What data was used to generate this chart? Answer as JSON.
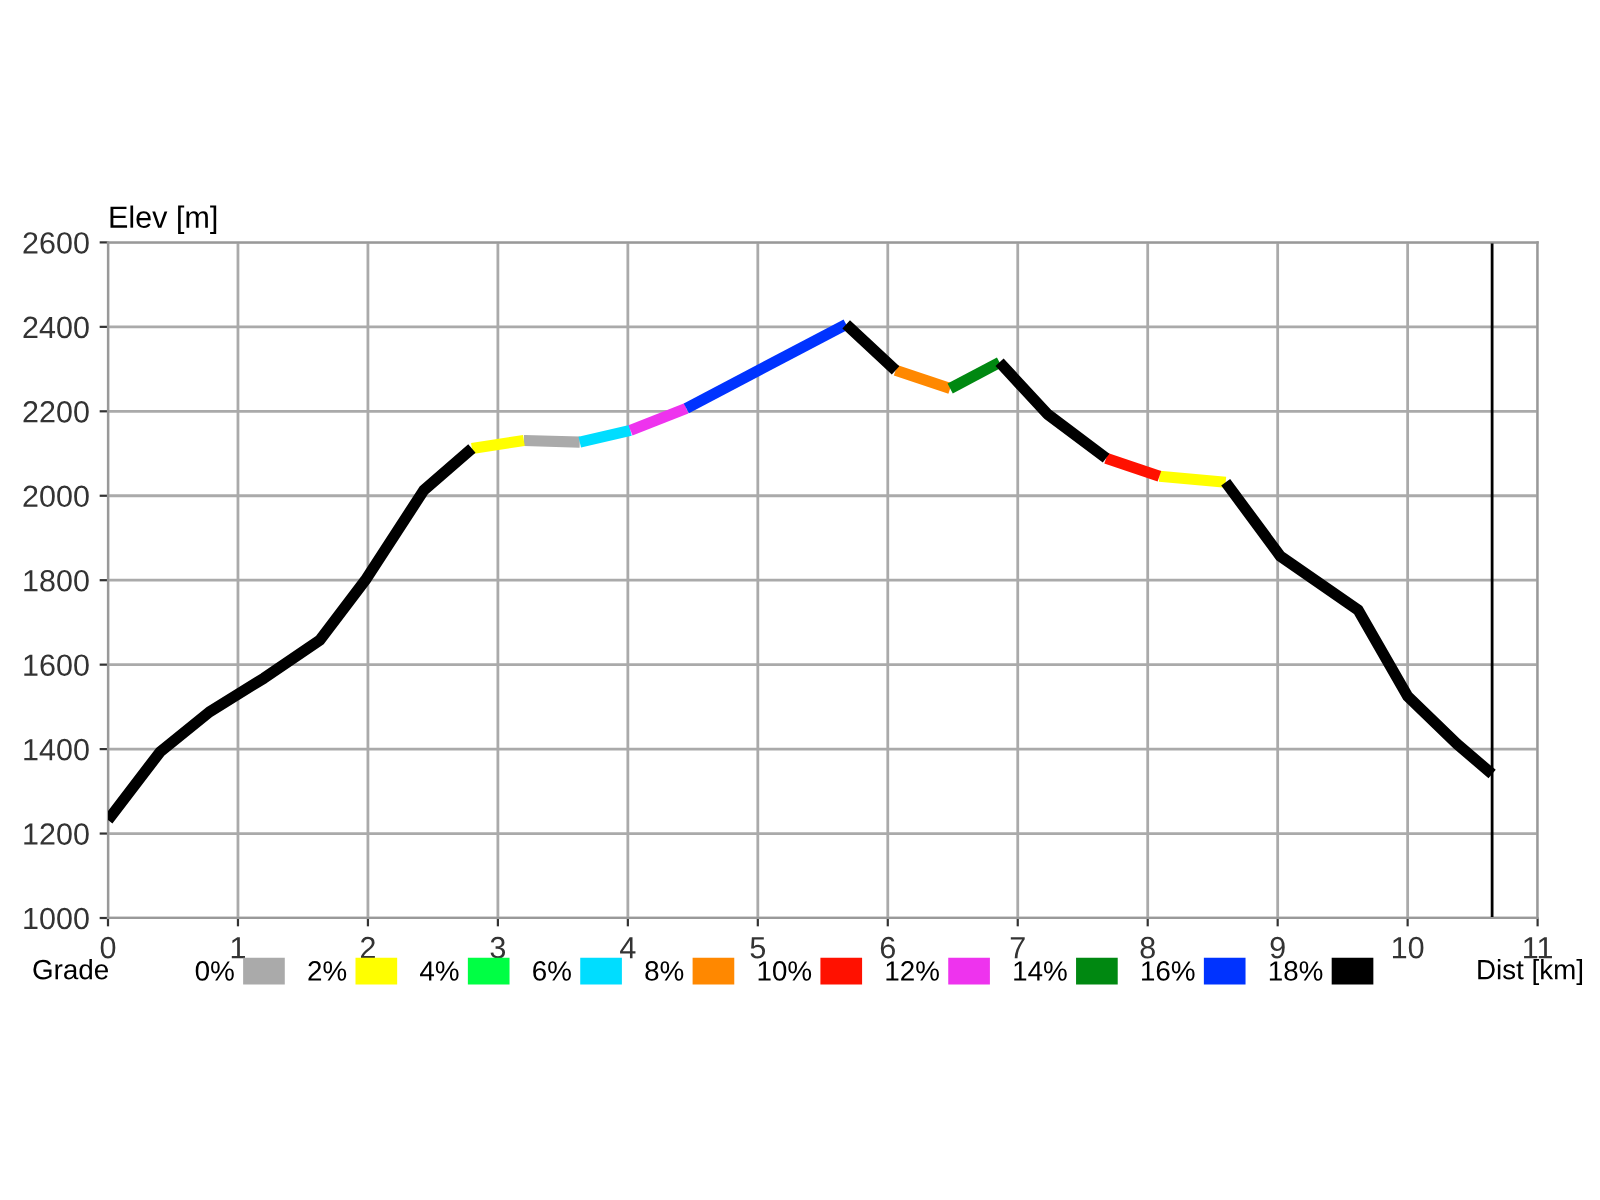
{
  "chart_data": {
    "type": "line",
    "xlabel": "Dist [km]",
    "ylabel": "Elev [m]",
    "legend_title": "Grade",
    "legend": "bottom",
    "grid": true,
    "marker": "none",
    "line_style": "solid",
    "x": [
      0,
      0.4,
      0.78,
      1.2,
      1.63,
      1.98,
      2.43,
      2.8,
      3.2,
      3.63,
      4.02,
      4.45,
      5.68,
      6.06,
      6.48,
      6.86,
      7.23,
      7.68,
      8.09,
      8.6,
      9.02,
      9.62,
      10.0,
      10.38,
      10.65
    ],
    "xlim": [
      0,
      11
    ],
    "xticks": [
      0,
      1,
      2,
      3,
      4,
      5,
      6,
      7,
      8,
      9,
      10,
      11
    ],
    "ylim": [
      1000,
      2600
    ],
    "yticks": [
      1000,
      1200,
      1400,
      1600,
      1800,
      2000,
      2200,
      2400,
      2600
    ],
    "series": [
      {
        "name": "0%",
        "color": "#aaaaaa",
        "values": [
          null,
          null,
          null,
          null,
          null,
          null,
          null,
          null,
          2131,
          2127,
          null,
          null,
          null,
          null,
          null,
          null,
          null,
          null,
          null,
          null,
          null,
          null,
          null,
          null,
          null
        ]
      },
      {
        "name": "2%",
        "color": "#ffff00",
        "values": [
          null,
          null,
          null,
          null,
          null,
          null,
          null,
          2112,
          2131,
          null,
          null,
          null,
          null,
          null,
          null,
          null,
          null,
          null,
          2046,
          2032,
          null,
          null,
          null,
          null,
          null
        ]
      },
      {
        "name": "4%",
        "color": "#00ff44",
        "values": [
          null,
          null,
          null,
          null,
          null,
          null,
          null,
          null,
          null,
          null,
          null,
          null,
          null,
          null,
          null,
          null,
          null,
          null,
          null,
          null,
          null,
          null,
          null,
          null,
          null
        ]
      },
      {
        "name": "6%",
        "color": "#00ddff",
        "values": [
          null,
          null,
          null,
          null,
          null,
          null,
          null,
          null,
          null,
          2127,
          2155,
          null,
          null,
          null,
          null,
          null,
          null,
          null,
          null,
          null,
          null,
          null,
          null,
          null,
          null
        ]
      },
      {
        "name": "8%",
        "color": "#ff8800",
        "values": [
          null,
          null,
          null,
          null,
          null,
          null,
          null,
          null,
          null,
          null,
          null,
          null,
          null,
          2297,
          2254,
          null,
          null,
          null,
          null,
          null,
          null,
          null,
          null,
          null,
          null
        ]
      },
      {
        "name": "10%",
        "color": "#ff1100",
        "values": [
          null,
          null,
          null,
          null,
          null,
          null,
          null,
          null,
          null,
          null,
          null,
          null,
          null,
          null,
          null,
          null,
          null,
          2089,
          2046,
          null,
          null,
          null,
          null,
          null,
          null
        ]
      },
      {
        "name": "12%",
        "color": "#ee33ee",
        "values": [
          null,
          null,
          null,
          null,
          null,
          null,
          null,
          null,
          null,
          null,
          2155,
          2207,
          null,
          null,
          null,
          null,
          null,
          null,
          null,
          null,
          null,
          null,
          null,
          null,
          null
        ]
      },
      {
        "name": "14%",
        "color": "#008811",
        "values": [
          null,
          null,
          null,
          null,
          null,
          null,
          null,
          null,
          null,
          null,
          null,
          null,
          null,
          null,
          2254,
          2316,
          null,
          null,
          null,
          null,
          null,
          null,
          null,
          null,
          null
        ]
      },
      {
        "name": "16%",
        "color": "#0033ff",
        "values": [
          null,
          null,
          null,
          null,
          null,
          null,
          null,
          null,
          null,
          null,
          null,
          2207,
          2406,
          null,
          null,
          null,
          null,
          null,
          null,
          null,
          null,
          null,
          null,
          null,
          null
        ]
      },
      {
        "name": "18%",
        "color": "#000000",
        "values": [
          1232,
          1393,
          1488,
          1568,
          1658,
          1800,
          2013,
          2112,
          null,
          null,
          null,
          null,
          2406,
          2297,
          null,
          2316,
          2193,
          2089,
          null,
          2032,
          1857,
          1729,
          1525,
          1412,
          1341
        ]
      }
    ],
    "ref_lines": [
      {
        "axis": "x",
        "value": 10.65,
        "color": "#000000"
      }
    ]
  }
}
